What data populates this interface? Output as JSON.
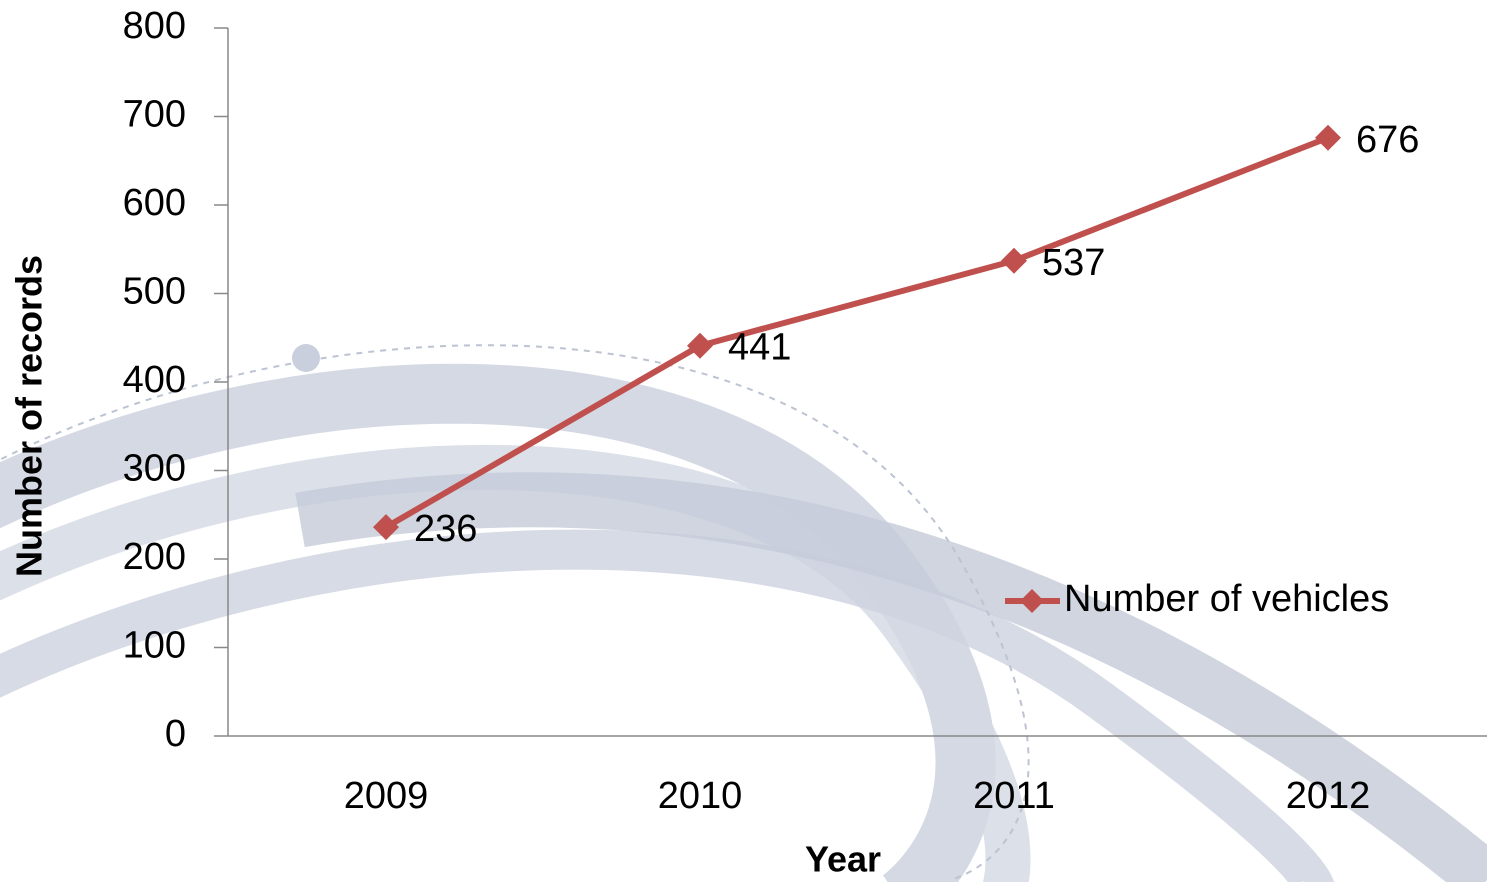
{
  "chart_data": {
    "type": "line",
    "categories": [
      "2009",
      "2010",
      "2011",
      "2012"
    ],
    "series": [
      {
        "name": "Number of vehicles",
        "color": "#c0504d",
        "values": [
          236,
          441,
          537,
          676
        ]
      }
    ],
    "ylim": [
      0,
      800
    ],
    "yticks": [
      0,
      100,
      200,
      300,
      400,
      500,
      600,
      700,
      800
    ],
    "x_label": "Year",
    "y_label": "Number of records",
    "grid": false,
    "legend": "right"
  }
}
